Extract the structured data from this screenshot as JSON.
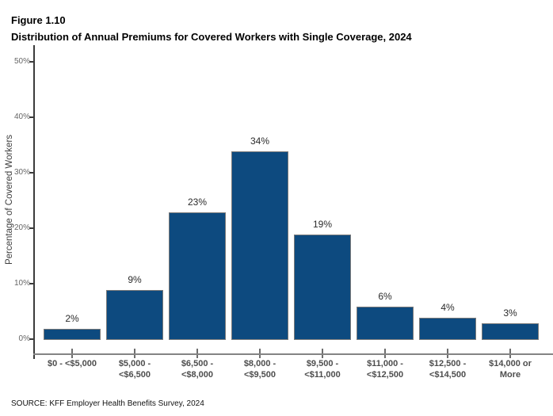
{
  "header": {
    "figure_label": "Figure 1.10",
    "title": "Distribution of Annual Premiums for Covered Workers with Single Coverage, 2024"
  },
  "footer": {
    "source": "SOURCE: KFF Employer Health Benefits Survey, 2024"
  },
  "colors": {
    "bar_fill": "#0d4a7f",
    "bar_border": "#7a7a7a",
    "x_axis_line": "#848484",
    "y_axis_line": "#3b3b3b",
    "y_tick_label": "#666666",
    "x_category_label": "#4d4d4d",
    "value_label": "#2b2b2b",
    "background": "#ffffff"
  },
  "chart_data": {
    "type": "bar",
    "title": "Distribution of Annual Premiums for Covered Workers with Single Coverage, 2024",
    "figure_label": "Figure 1.10",
    "categories": [
      "$0 - <$5,000",
      "$5,000 - <$6,500",
      "$6,500 - <$8,000",
      "$8,000 - <$9,500",
      "$9,500 - <$11,000",
      "$11,000 - <$12,500",
      "$12,500 - <$14,500",
      "$14,000 or More"
    ],
    "category_lines": [
      [
        "$0 - <$5,000"
      ],
      [
        "$5,000 -",
        "<$6,500"
      ],
      [
        "$6,500 -",
        "<$8,000"
      ],
      [
        "$8,000 -",
        "<$9,500"
      ],
      [
        "$9,500 -",
        "<$11,000"
      ],
      [
        "$11,000 -",
        "<$12,500"
      ],
      [
        "$12,500 -",
        "<$14,500"
      ],
      [
        "$14,000 or",
        "More"
      ]
    ],
    "values": [
      2,
      9,
      23,
      34,
      19,
      6,
      4,
      3
    ],
    "value_labels": [
      "2%",
      "9%",
      "23%",
      "34%",
      "19%",
      "6%",
      "4%",
      "3%"
    ],
    "xlabel": "",
    "ylabel": "Percentage of Covered Workers",
    "ylim": [
      0,
      50
    ],
    "ytick_values": [
      0,
      10,
      20,
      30,
      40,
      50
    ],
    "ytick_labels": [
      "0%",
      "10%",
      "20%",
      "30%",
      "40%",
      "50%"
    ],
    "grid": false,
    "legend": "none",
    "source": "SOURCE: KFF Employer Health Benefits Survey, 2024"
  }
}
